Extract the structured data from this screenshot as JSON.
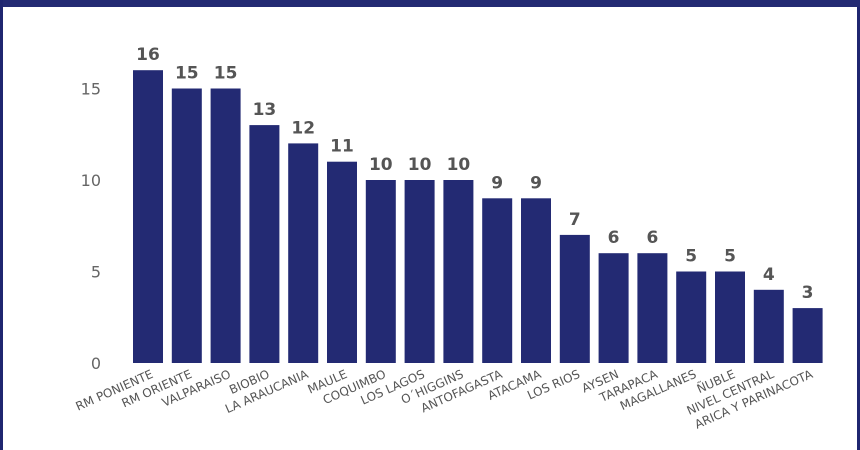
{
  "chart_data": {
    "type": "bar",
    "title": "",
    "xlabel": "",
    "ylabel": "",
    "categories": [
      "RM PONIENTE",
      "RM ORIENTE",
      "VALPARAISO",
      "BIOBIO",
      "LA ARAUCANIA",
      "MAULE",
      "COQUIMBO",
      "LOS LAGOS",
      "O´HIGGINS",
      "ANTOFAGASTA",
      "ATACAMA",
      "LOS RIOS",
      "AYSEN",
      "TARAPACA",
      "MAGALLANES",
      "ÑUBLE",
      "NIVEL CENTRAL",
      "ARICA Y PARINACOTA"
    ],
    "values": [
      16,
      15,
      15,
      13,
      12,
      11,
      10,
      10,
      10,
      9,
      9,
      7,
      6,
      6,
      5,
      5,
      4,
      3
    ],
    "ylim": [
      0,
      16
    ],
    "yticks": [
      0,
      5,
      10,
      15
    ],
    "grid": false,
    "legend": "none",
    "bar_color": "#232a73",
    "data_labels": true
  }
}
